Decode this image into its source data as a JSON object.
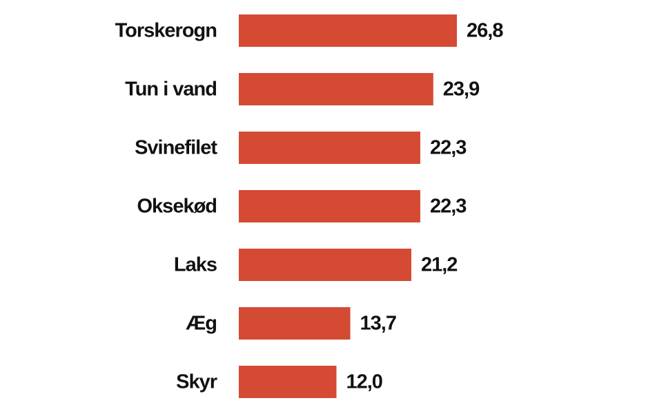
{
  "chart_data": {
    "type": "bar",
    "orientation": "horizontal",
    "categories": [
      "Torskerogn",
      "Tun i vand",
      "Svinefilet",
      "Oksekød",
      "Laks",
      "Æg",
      "Skyr"
    ],
    "values": [
      26.8,
      23.9,
      22.3,
      22.3,
      21.2,
      13.7,
      12.0
    ],
    "value_labels": [
      "26,8",
      "23,9",
      "22,3",
      "22,3",
      "21,2",
      "13,7",
      "12,0"
    ],
    "title": "",
    "xlabel": "",
    "ylabel": "",
    "xlim": [
      0,
      26.8
    ],
    "grid": false,
    "legend": "none",
    "bar_color": "#d44a33"
  }
}
